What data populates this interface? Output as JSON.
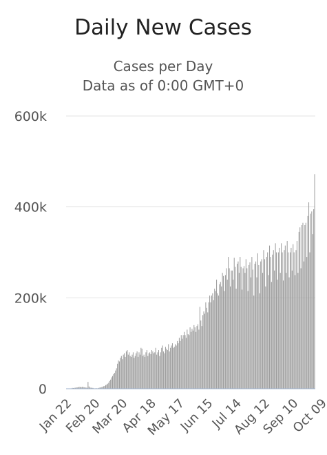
{
  "chart_data": {
    "type": "bar",
    "title": "Daily New Cases",
    "subtitle_lines": [
      "Cases per Day",
      "Data as of 0:00 GMT+0"
    ],
    "xlabel": "",
    "ylabel": "",
    "ylim": [
      0,
      600000
    ],
    "y_ticks": [
      0,
      200000,
      400000,
      600000
    ],
    "y_tick_labels": [
      "0",
      "200k",
      "400k",
      "600k"
    ],
    "x_tick_labels": [
      "Jan 22",
      "Feb 20",
      "Mar 20",
      "Apr 18",
      "May 17",
      "Jun 15",
      "Jul 14",
      "Aug 12",
      "Sep 10",
      "Oct 09"
    ],
    "x_tick_day_index": [
      0,
      29,
      57,
      86,
      115,
      144,
      173,
      202,
      231,
      260
    ],
    "grid": true,
    "legend": false,
    "bar_color": "#9c9c9c",
    "start_date": "Jan 22",
    "values": [
      600,
      150,
      250,
      500,
      700,
      800,
      1800,
      1500,
      2000,
      2100,
      2600,
      2800,
      3200,
      3900,
      3700,
      3200,
      3900,
      3700,
      3100,
      2700,
      2600,
      2000,
      15000,
      5000,
      2600,
      2300,
      2000,
      1800,
      1000,
      600,
      1200,
      1000,
      900,
      1800,
      2500,
      2800,
      3500,
      4500,
      5500,
      6000,
      8000,
      9000,
      11000,
      13000,
      17000,
      20000,
      25000,
      28000,
      32000,
      35000,
      40000,
      45000,
      55000,
      62000,
      60000,
      68000,
      72000,
      65000,
      75000,
      78000,
      70000,
      82000,
      85000,
      75000,
      80000,
      72000,
      70000,
      75000,
      80000,
      68000,
      72000,
      78000,
      82000,
      70000,
      80000,
      75000,
      90000,
      88000,
      72000,
      75000,
      70000,
      80000,
      85000,
      72000,
      78000,
      80000,
      76000,
      85000,
      82000,
      78000,
      80000,
      90000,
      75000,
      80000,
      85000,
      72000,
      80000,
      90000,
      95000,
      82000,
      78000,
      92000,
      88000,
      85000,
      98000,
      82000,
      90000,
      95000,
      100000,
      90000,
      92000,
      98000,
      95000,
      105000,
      100000,
      112000,
      105000,
      118000,
      110000,
      118000,
      125000,
      118000,
      112000,
      130000,
      120000,
      118000,
      135000,
      125000,
      132000,
      128000,
      140000,
      135000,
      125000,
      138000,
      142000,
      130000,
      180000,
      150000,
      138000,
      162000,
      170000,
      165000,
      190000,
      178000,
      168000,
      190000,
      205000,
      190000,
      205000,
      210000,
      195000,
      220000,
      215000,
      240000,
      210000,
      205000,
      230000,
      235000,
      225000,
      255000,
      248000,
      215000,
      250000,
      265000,
      240000,
      290000,
      265000,
      225000,
      260000,
      260000,
      240000,
      288000,
      268000,
      220000,
      275000,
      280000,
      255000,
      290000,
      268000,
      218000,
      265000,
      270000,
      255000,
      285000,
      265000,
      215000,
      272000,
      278000,
      245000,
      290000,
      262000,
      205000,
      275000,
      280000,
      245000,
      298000,
      272000,
      210000,
      280000,
      285000,
      255000,
      305000,
      285000,
      225000,
      290000,
      300000,
      250000,
      315000,
      290000,
      235000,
      295000,
      305000,
      260000,
      320000,
      300000,
      240000,
      300000,
      310000,
      255000,
      320000,
      300000,
      238000,
      305000,
      315000,
      255000,
      325000,
      300000,
      245000,
      300000,
      310000,
      260000,
      318000,
      300000,
      250000,
      305000,
      325000,
      255000,
      345000,
      355000,
      265000,
      360000,
      365000,
      280000,
      360000,
      365000,
      290000,
      380000,
      410000,
      300000,
      385000,
      390000,
      340000,
      395000,
      472000
    ]
  }
}
